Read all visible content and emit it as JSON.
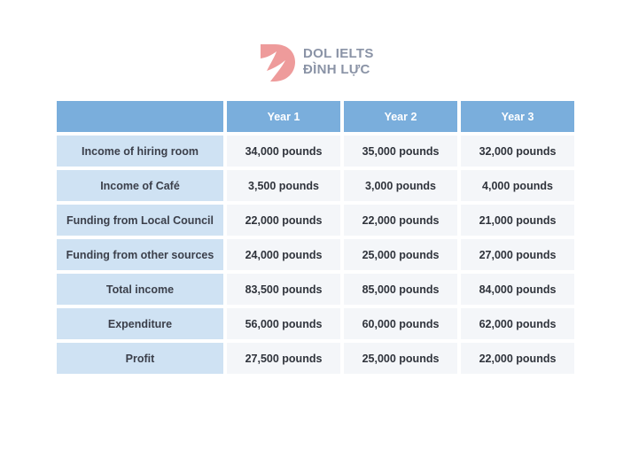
{
  "logo": {
    "line1": "DOL IELTS",
    "line2": "ĐÌNH LỰC",
    "accent": "#ee9b9b"
  },
  "chart_data": {
    "type": "table",
    "columns": [
      "",
      "Year 1",
      "Year 2",
      "Year 3"
    ],
    "rows": [
      {
        "label": "Income of hiring room",
        "values": [
          "34,000 pounds",
          "35,000 pounds",
          "32,000 pounds"
        ]
      },
      {
        "label": "Income of Café",
        "values": [
          "3,500 pounds",
          "3,000 pounds",
          "4,000 pounds"
        ]
      },
      {
        "label": "Funding from Local Council",
        "values": [
          "22,000 pounds",
          "22,000 pounds",
          "21,000 pounds"
        ]
      },
      {
        "label": "Funding from other sources",
        "values": [
          "24,000 pounds",
          "25,000 pounds",
          "27,000 pounds"
        ]
      },
      {
        "label": "Total income",
        "values": [
          "83,500 pounds",
          "85,000 pounds",
          "84,000 pounds"
        ]
      },
      {
        "label": "Expenditure",
        "values": [
          "56,000 pounds",
          "60,000 pounds",
          "62,000 pounds"
        ]
      },
      {
        "label": "Profit",
        "values": [
          "27,500 pounds",
          "25,000 pounds",
          "22,000 pounds"
        ]
      }
    ]
  }
}
